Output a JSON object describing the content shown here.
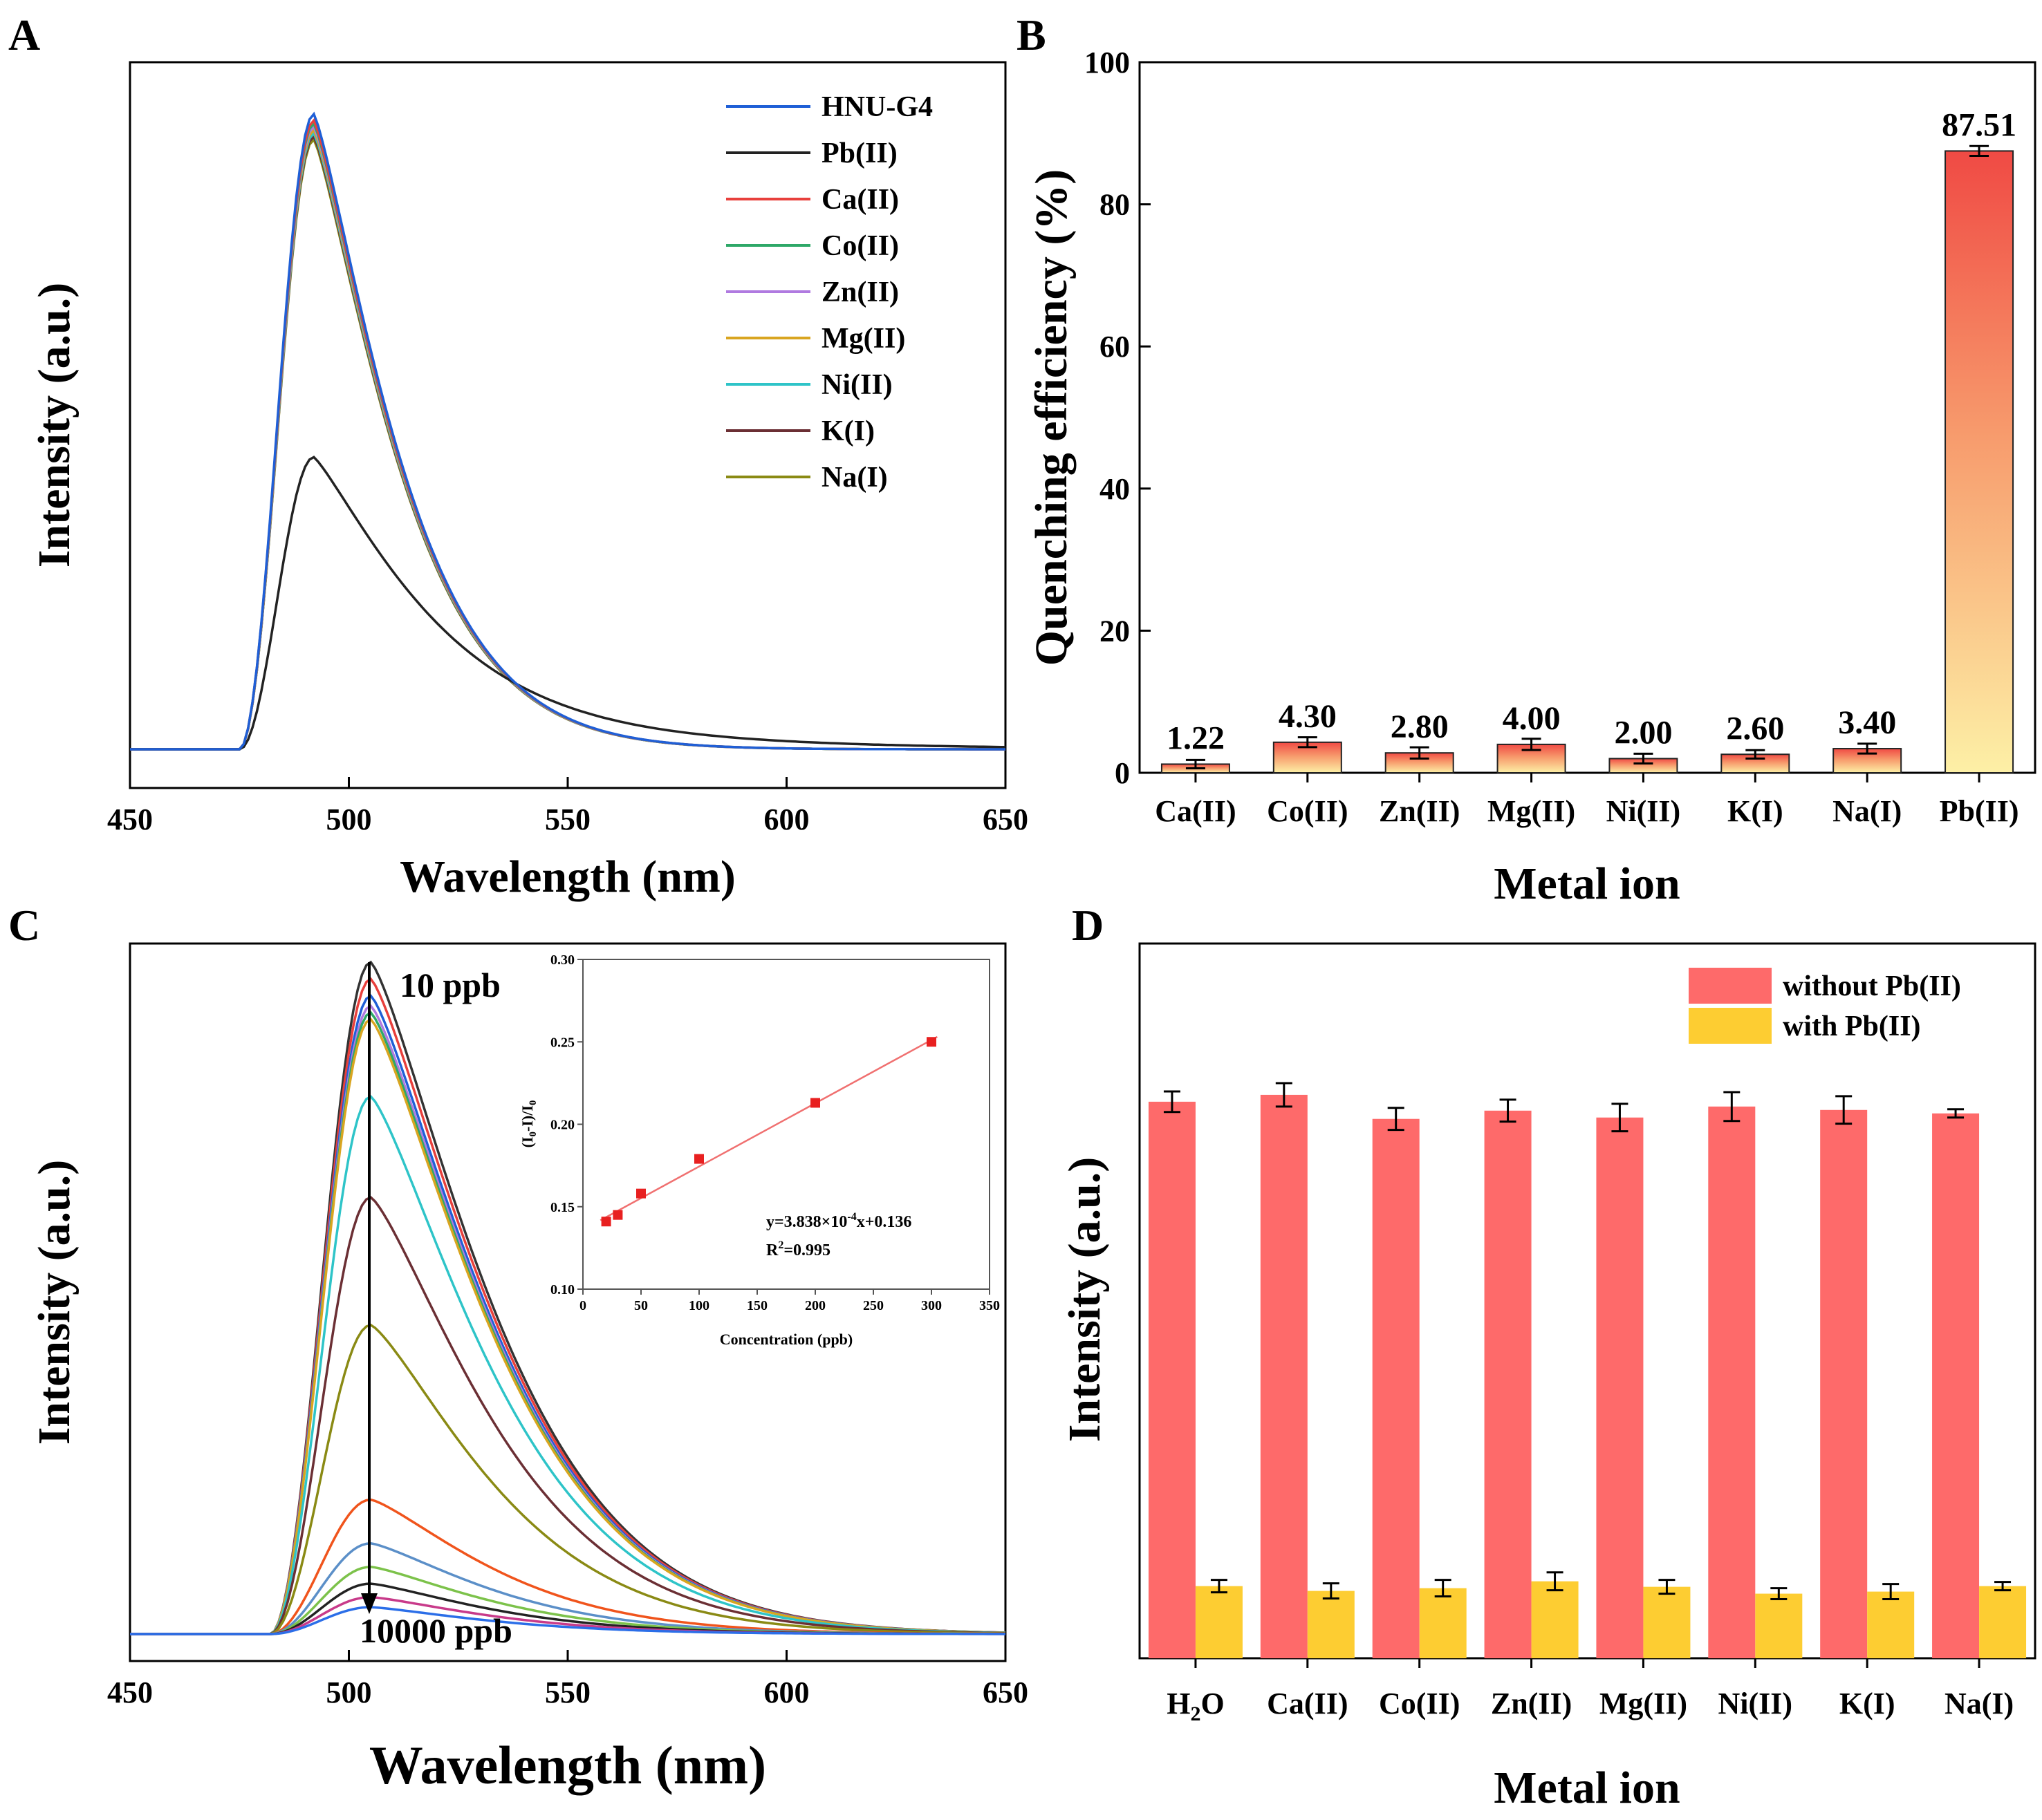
{
  "chart_data": [
    {
      "panel": "A",
      "type": "line",
      "xlabel": "Wavelength (nm)",
      "ylabel": "Intensity (a.u.)",
      "xlim": [
        450,
        650
      ],
      "xticks": [
        450,
        500,
        550,
        600,
        650
      ],
      "legend_position": "top-right",
      "series": [
        {
          "name": "HNU-G4",
          "color": "#1f5fd6",
          "peak": 1.0
        },
        {
          "name": "Pb(II)",
          "color": "#222222",
          "peak": 0.46
        },
        {
          "name": "Ca(II)",
          "color": "#e8403c",
          "peak": 0.99
        },
        {
          "name": "Co(II)",
          "color": "#2ea868",
          "peak": 0.985
        },
        {
          "name": "Zn(II)",
          "color": "#b07ae0",
          "peak": 0.98
        },
        {
          "name": "Mg(II)",
          "color": "#d9a520",
          "peak": 0.975
        },
        {
          "name": "Ni(II)",
          "color": "#2ec4c8",
          "peak": 0.97
        },
        {
          "name": "K(I)",
          "color": "#6b2f34",
          "peak": 0.965
        },
        {
          "name": "Na(I)",
          "color": "#8a8a14",
          "peak": 0.96
        }
      ]
    },
    {
      "panel": "B",
      "type": "bar",
      "xlabel": "Metal ion",
      "ylabel": "Quenching efficiency (%)",
      "ylim": [
        0,
        100
      ],
      "yticks": [
        0,
        20,
        40,
        60,
        80,
        100
      ],
      "categories": [
        "Ca(II)",
        "Co(II)",
        "Zn(II)",
        "Mg(II)",
        "Ni(II)",
        "K(I)",
        "Na(I)",
        "Pb(II)"
      ],
      "values": [
        1.22,
        4.3,
        2.8,
        4.0,
        2.0,
        2.6,
        3.4,
        87.51
      ],
      "value_labels": [
        "1.22",
        "4.30",
        "2.80",
        "4.00",
        "2.00",
        "2.60",
        "3.40",
        "87.51"
      ],
      "errors": [
        0.3,
        0.4,
        0.5,
        0.5,
        0.4,
        0.3,
        0.4,
        0.4
      ]
    },
    {
      "panel": "C",
      "type": "line",
      "xlabel": "Wavelength (nm)",
      "ylabel": "Intensity (a.u.)",
      "xlim": [
        450,
        650
      ],
      "xticks": [
        450,
        500,
        550,
        600,
        650
      ],
      "annotations": [
        "10 ppb",
        "10000 ppb"
      ],
      "series": [
        {
          "color": "#333333",
          "peak": 1.0
        },
        {
          "color": "#e8403c",
          "peak": 0.975
        },
        {
          "color": "#1f5fd6",
          "peak": 0.95
        },
        {
          "color": "#b07ae0",
          "peak": 0.935
        },
        {
          "color": "#2ea868",
          "peak": 0.925
        },
        {
          "color": "#d9a520",
          "peak": 0.915
        },
        {
          "color": "#2ec4c8",
          "peak": 0.8
        },
        {
          "color": "#6b2f34",
          "peak": 0.65
        },
        {
          "color": "#8a8a14",
          "peak": 0.46
        },
        {
          "color": "#f0541c",
          "peak": 0.2
        },
        {
          "color": "#5b8fc8",
          "peak": 0.135
        },
        {
          "color": "#7cc24a",
          "peak": 0.1
        },
        {
          "color": "#222222",
          "peak": 0.075
        },
        {
          "color": "#c83a8a",
          "peak": 0.055
        },
        {
          "color": "#2b6ee8",
          "peak": 0.04
        }
      ],
      "inset": {
        "type": "scatter",
        "xlabel": "Concentration (ppb)",
        "ylabel": "(I0-I)/I0",
        "ylabel_main": "(I",
        "ylabel_sub0": "0",
        "ylabel_mid": "-I)/I",
        "ylabel_sub1": "0",
        "xlim": [
          0,
          350
        ],
        "ylim": [
          0.1,
          0.3
        ],
        "xticks": [
          0,
          50,
          100,
          150,
          200,
          250,
          300,
          350
        ],
        "yticks": [
          "0.10",
          "0.15",
          "0.20",
          "0.25",
          "0.30"
        ],
        "x": [
          20,
          30,
          50,
          100,
          200,
          300
        ],
        "y": [
          0.141,
          0.145,
          0.158,
          0.179,
          0.213,
          0.25
        ],
        "fit_slope": 0.0003838,
        "fit_intercept": 0.136,
        "equation_prefix": "y=3.838×10",
        "equation_exp": "-4",
        "equation_suffix": "x+0.136",
        "r2_prefix": "R",
        "r2_exp": "2",
        "r2_suffix": "=0.995"
      }
    },
    {
      "panel": "D",
      "type": "bar",
      "xlabel": "Metal ion",
      "ylabel": "Intensity (a.u.)",
      "legend_position": "top-right",
      "categories": [
        "H2O",
        "Ca(II)",
        "Co(II)",
        "Zn(II)",
        "Mg(II)",
        "Ni(II)",
        "K(I)",
        "Na(I)"
      ],
      "series": [
        {
          "name": "without Pb(II)",
          "color": "#fe6a6a",
          "values": [
            0.81,
            0.82,
            0.785,
            0.797,
            0.787,
            0.803,
            0.798,
            0.793
          ],
          "errors": [
            0.015,
            0.017,
            0.016,
            0.016,
            0.02,
            0.021,
            0.02,
            0.006
          ]
        },
        {
          "name": "with Pb(II)",
          "color": "#fdcd32",
          "values": [
            0.105,
            0.098,
            0.102,
            0.112,
            0.104,
            0.094,
            0.097,
            0.105
          ],
          "errors": [
            0.009,
            0.011,
            0.012,
            0.013,
            0.01,
            0.008,
            0.011,
            0.006
          ]
        }
      ]
    }
  ],
  "labels": {
    "panel_a": "A",
    "panel_b": "B",
    "panel_c": "C",
    "panel_d": "D",
    "h2o_main": "H",
    "h2o_sub": "2",
    "h2o_end": "O"
  }
}
